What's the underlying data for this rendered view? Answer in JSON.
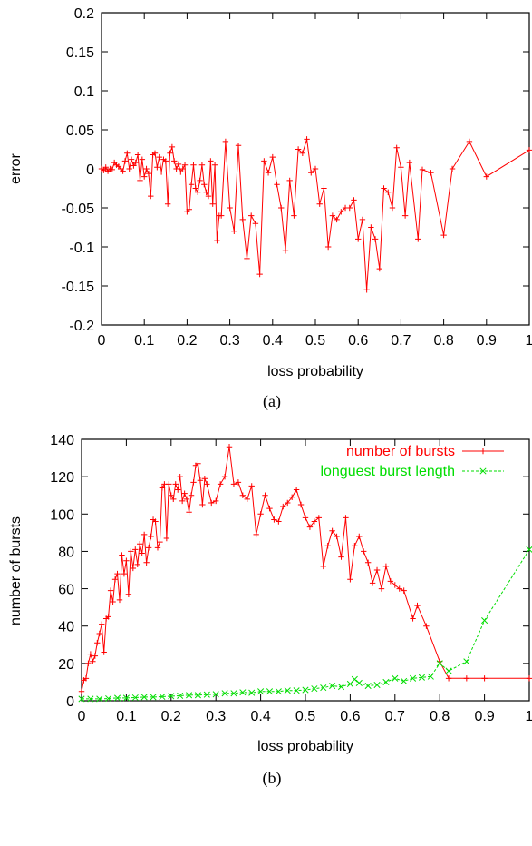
{
  "chart_data": [
    {
      "type": "line",
      "caption": "(a)",
      "xlabel": "loss probability",
      "ylabel": "error",
      "xlim": [
        0,
        1
      ],
      "ylim": [
        -0.2,
        0.2
      ],
      "xticks": [
        0,
        0.1,
        0.2,
        0.3,
        0.4,
        0.5,
        0.6,
        0.7,
        0.8,
        0.9,
        1
      ],
      "yticks": [
        -0.2,
        -0.15,
        -0.1,
        -0.05,
        0,
        0.05,
        0.1,
        0.15,
        0.2
      ],
      "xtick_labels": [
        "0",
        "0.1",
        "0.2",
        "0.3",
        "0.4",
        "0.5",
        "0.6",
        "0.7",
        "0.8",
        "0.9",
        "1"
      ],
      "ytick_labels": [
        "-0.2",
        "-0.15",
        "-0.1",
        "-0.05",
        "0",
        "0.05",
        "0.1",
        "0.15",
        "0.2"
      ],
      "grid": false,
      "legend": null,
      "series": [
        {
          "color": "#ff0000",
          "marker": "plus",
          "x": [
            0.0,
            0.005,
            0.01,
            0.015,
            0.02,
            0.025,
            0.03,
            0.035,
            0.04,
            0.045,
            0.05,
            0.055,
            0.06,
            0.065,
            0.07,
            0.075,
            0.08,
            0.085,
            0.09,
            0.095,
            0.1,
            0.105,
            0.11,
            0.115,
            0.12,
            0.125,
            0.13,
            0.135,
            0.14,
            0.145,
            0.15,
            0.155,
            0.16,
            0.165,
            0.17,
            0.175,
            0.18,
            0.185,
            0.19,
            0.195,
            0.2,
            0.205,
            0.21,
            0.215,
            0.22,
            0.225,
            0.23,
            0.235,
            0.24,
            0.245,
            0.25,
            0.255,
            0.26,
            0.265,
            0.27,
            0.275,
            0.28,
            0.29,
            0.3,
            0.31,
            0.32,
            0.33,
            0.34,
            0.35,
            0.36,
            0.37,
            0.38,
            0.39,
            0.4,
            0.41,
            0.42,
            0.43,
            0.44,
            0.45,
            0.46,
            0.47,
            0.48,
            0.49,
            0.5,
            0.51,
            0.52,
            0.53,
            0.54,
            0.55,
            0.56,
            0.57,
            0.58,
            0.59,
            0.6,
            0.61,
            0.62,
            0.63,
            0.64,
            0.65,
            0.66,
            0.67,
            0.68,
            0.69,
            0.7,
            0.71,
            0.72,
            0.74,
            0.75,
            0.77,
            0.8,
            0.82,
            0.86,
            0.9,
            1.0
          ],
          "y": [
            0.0,
            -0.002,
            0.002,
            -0.003,
            0.0,
            -0.001,
            0.008,
            0.005,
            0.003,
            0.0,
            -0.003,
            0.01,
            0.02,
            0.0,
            0.012,
            0.004,
            0.008,
            0.018,
            -0.015,
            0.012,
            -0.01,
            0.0,
            -0.006,
            -0.035,
            0.018,
            0.02,
            0.002,
            0.015,
            -0.004,
            0.012,
            0.01,
            -0.045,
            0.02,
            0.028,
            0.01,
            0.0,
            0.006,
            -0.004,
            0.0,
            0.005,
            -0.055,
            -0.052,
            -0.02,
            0.005,
            -0.025,
            -0.03,
            -0.015,
            0.005,
            -0.02,
            -0.03,
            -0.035,
            0.01,
            -0.045,
            0.005,
            -0.092,
            -0.06,
            -0.06,
            0.035,
            -0.05,
            -0.08,
            0.03,
            -0.065,
            -0.115,
            -0.06,
            -0.07,
            -0.135,
            0.01,
            -0.005,
            0.015,
            -0.02,
            -0.05,
            -0.105,
            -0.015,
            -0.06,
            0.025,
            0.02,
            0.038,
            -0.005,
            0.0,
            -0.045,
            -0.025,
            -0.1,
            -0.06,
            -0.065,
            -0.055,
            -0.05,
            -0.05,
            -0.04,
            -0.09,
            -0.065,
            -0.155,
            -0.075,
            -0.09,
            -0.128,
            -0.025,
            -0.03,
            -0.05,
            0.027,
            0.002,
            -0.06,
            0.008,
            -0.09,
            -0.001,
            -0.005,
            -0.085,
            0.0,
            0.035,
            -0.01,
            0.024
          ]
        }
      ]
    },
    {
      "type": "line",
      "caption": "(b)",
      "xlabel": "loss probability",
      "ylabel": "number of bursts",
      "xlim": [
        0,
        1
      ],
      "ylim": [
        0,
        140
      ],
      "xticks": [
        0,
        0.1,
        0.2,
        0.3,
        0.4,
        0.5,
        0.6,
        0.7,
        0.8,
        0.9,
        1
      ],
      "yticks": [
        0,
        20,
        40,
        60,
        80,
        100,
        120,
        140
      ],
      "xtick_labels": [
        "0",
        "0.1",
        "0.2",
        "0.3",
        "0.4",
        "0.5",
        "0.6",
        "0.7",
        "0.8",
        "0.9",
        "1"
      ],
      "ytick_labels": [
        "0",
        "20",
        "40",
        "60",
        "80",
        "100",
        "120",
        "140"
      ],
      "grid": false,
      "legend": "top-right",
      "series": [
        {
          "name": "number of bursts",
          "color": "#ff0000",
          "marker": "plus",
          "dash": false,
          "x": [
            0.0,
            0.005,
            0.01,
            0.015,
            0.02,
            0.025,
            0.03,
            0.035,
            0.04,
            0.045,
            0.05,
            0.055,
            0.06,
            0.065,
            0.07,
            0.075,
            0.08,
            0.085,
            0.09,
            0.095,
            0.1,
            0.105,
            0.11,
            0.115,
            0.12,
            0.125,
            0.13,
            0.135,
            0.14,
            0.145,
            0.15,
            0.155,
            0.16,
            0.165,
            0.17,
            0.175,
            0.18,
            0.185,
            0.19,
            0.195,
            0.2,
            0.205,
            0.21,
            0.215,
            0.22,
            0.225,
            0.23,
            0.235,
            0.24,
            0.245,
            0.25,
            0.255,
            0.26,
            0.265,
            0.27,
            0.275,
            0.28,
            0.29,
            0.3,
            0.31,
            0.32,
            0.33,
            0.34,
            0.35,
            0.36,
            0.37,
            0.38,
            0.39,
            0.4,
            0.41,
            0.42,
            0.43,
            0.44,
            0.45,
            0.46,
            0.47,
            0.48,
            0.49,
            0.5,
            0.51,
            0.52,
            0.53,
            0.54,
            0.55,
            0.56,
            0.57,
            0.58,
            0.59,
            0.6,
            0.61,
            0.62,
            0.63,
            0.64,
            0.65,
            0.66,
            0.67,
            0.68,
            0.69,
            0.7,
            0.71,
            0.72,
            0.74,
            0.75,
            0.77,
            0.8,
            0.82,
            0.86,
            0.9,
            1.0
          ],
          "y": [
            5,
            11,
            12,
            20,
            25,
            21,
            24,
            31,
            36,
            41,
            26,
            44,
            45,
            59,
            53,
            65,
            68,
            54,
            78,
            68,
            75,
            57,
            80,
            71,
            81,
            73,
            84,
            79,
            89,
            74,
            82,
            88,
            97,
            96,
            82,
            85,
            114,
            116,
            87,
            116,
            110,
            108,
            116,
            113,
            120,
            107,
            111,
            108,
            101,
            110,
            117,
            126,
            127,
            118,
            105,
            119,
            116,
            106,
            107,
            116,
            120,
            136,
            116,
            117,
            110,
            108,
            115,
            89,
            100,
            110,
            103,
            97,
            96,
            104,
            106,
            109,
            113,
            105,
            98,
            93,
            96,
            98,
            72,
            83,
            91,
            88,
            77,
            98,
            65,
            83,
            88,
            80,
            74,
            63,
            70,
            60,
            72,
            64,
            62,
            60,
            59,
            44,
            51,
            40,
            21,
            12,
            12,
            12,
            12
          ],
          "note": ""
        },
        {
          "name": "longuest burst length",
          "color": "#00dd00",
          "marker": "cross",
          "dash": true,
          "x": [
            0.0,
            0.02,
            0.04,
            0.06,
            0.08,
            0.1,
            0.12,
            0.14,
            0.16,
            0.18,
            0.2,
            0.22,
            0.24,
            0.26,
            0.28,
            0.3,
            0.32,
            0.34,
            0.36,
            0.38,
            0.4,
            0.42,
            0.44,
            0.46,
            0.48,
            0.5,
            0.52,
            0.54,
            0.56,
            0.58,
            0.6,
            0.61,
            0.62,
            0.64,
            0.66,
            0.68,
            0.7,
            0.72,
            0.74,
            0.76,
            0.78,
            0.8,
            0.82,
            0.86,
            0.9,
            1.0
          ],
          "y": [
            1,
            1,
            1,
            1.2,
            1.5,
            1.5,
            1.7,
            2,
            2,
            2.2,
            2.5,
            2.7,
            3,
            3,
            3.3,
            3.5,
            4,
            4,
            4.5,
            4.3,
            5,
            5,
            5,
            5.5,
            5.5,
            5.8,
            6.5,
            7,
            8,
            7.5,
            9,
            11.5,
            9.5,
            8,
            8.5,
            10,
            12,
            10.5,
            12,
            12.5,
            13,
            20,
            16,
            21,
            43,
            81
          ]
        }
      ]
    }
  ]
}
